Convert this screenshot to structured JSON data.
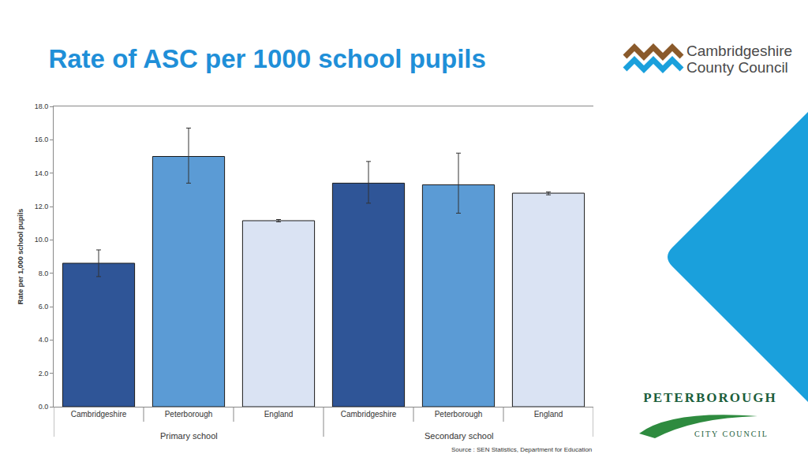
{
  "chart_data": {
    "type": "bar",
    "title": "Rate of ASC per 1000 school pupils",
    "ylabel": "Rate per 1,000 school pupils",
    "categories": [
      "Cambridgeshire",
      "Peterborough",
      "England",
      "Cambridgeshire",
      "Peterborough",
      "England"
    ],
    "group_labels": [
      "Primary school",
      "Primary school",
      "Primary school",
      "Secondary school",
      "Secondary school",
      "Secondary school"
    ],
    "values": [
      8.6,
      15.0,
      11.15,
      13.4,
      13.3,
      12.8
    ],
    "error_low": [
      7.8,
      13.4,
      11.08,
      12.2,
      11.6,
      12.7
    ],
    "error_high": [
      9.4,
      16.7,
      11.22,
      14.7,
      15.2,
      12.87
    ],
    "colors": [
      "#2f5597",
      "#5b9bd5",
      "#dae3f3",
      "#2f5597",
      "#5b9bd5",
      "#dae3f3"
    ],
    "ylim": [
      0,
      18
    ],
    "yticks": [
      {
        "value": 0,
        "label": "0.0"
      },
      {
        "value": 2,
        "label": "2.0"
      },
      {
        "value": 4,
        "label": "4.0"
      },
      {
        "value": 6,
        "label": "6.0"
      },
      {
        "value": 8,
        "label": "8.0"
      },
      {
        "value": 10,
        "label": "10.0"
      },
      {
        "value": 12,
        "label": "12.0"
      },
      {
        "value": 14,
        "label": "14.0"
      },
      {
        "value": 16,
        "label": "16.0"
      },
      {
        "value": 18,
        "label": "18.0"
      }
    ],
    "grid": false,
    "source": "Source : SEN Statistics, Department for Education",
    "logos": {
      "cambridgeshire": [
        "Cambridgeshire",
        "County Council"
      ],
      "peterborough": [
        "PETERBOROUGH",
        "CITY COUNCIL"
      ]
    }
  }
}
